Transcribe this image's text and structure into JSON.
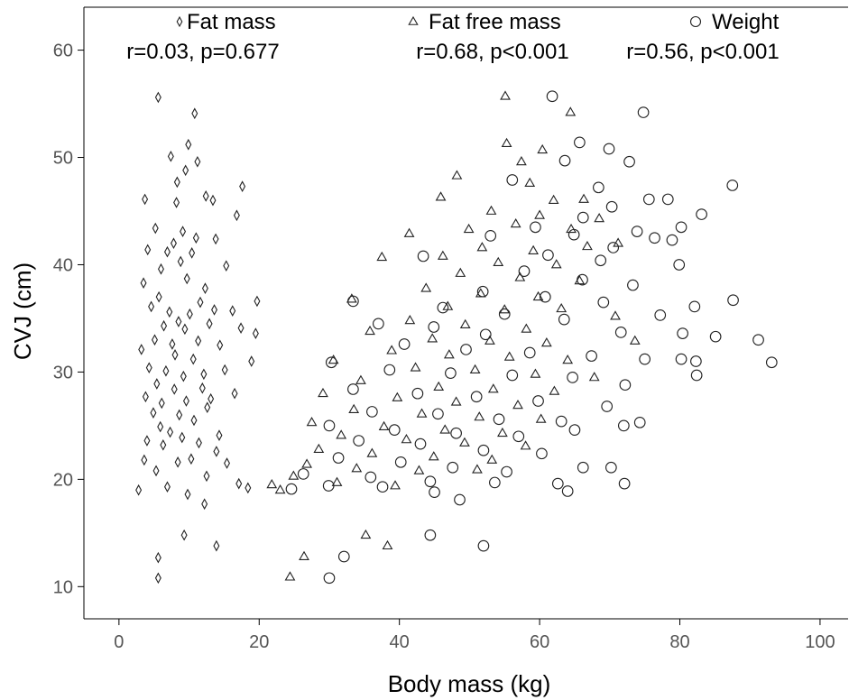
{
  "chart_data": {
    "type": "scatter",
    "xlabel": "Body mass (kg)",
    "ylabel": "CVJ (cm)",
    "xlim": [
      -5,
      104
    ],
    "ylim": [
      7,
      64
    ],
    "x_ticks": [
      0,
      20,
      40,
      60,
      80,
      100
    ],
    "y_ticks": [
      10,
      20,
      30,
      40,
      50,
      60
    ],
    "grid": false,
    "legend_position": "top",
    "series": [
      {
        "name": "Fat mass",
        "marker": "diamond",
        "annotation": "r=0.03, p=0.677",
        "points": [
          [
            5.6,
            55.6
          ],
          [
            10.8,
            54.1
          ],
          [
            9.9,
            51.2
          ],
          [
            7.4,
            50.1
          ],
          [
            11.2,
            49.6
          ],
          [
            9.5,
            48.8
          ],
          [
            17.6,
            47.3
          ],
          [
            8.3,
            47.7
          ],
          [
            12.4,
            46.4
          ],
          [
            3.7,
            46.1
          ],
          [
            8.2,
            45.8
          ],
          [
            13.4,
            46.0
          ],
          [
            16.8,
            44.6
          ],
          [
            5.2,
            43.4
          ],
          [
            9.1,
            43.1
          ],
          [
            11.0,
            42.5
          ],
          [
            13.8,
            42.4
          ],
          [
            4.1,
            41.4
          ],
          [
            6.9,
            41.2
          ],
          [
            7.8,
            42.0
          ],
          [
            10.4,
            41.1
          ],
          [
            8.8,
            40.3
          ],
          [
            15.3,
            39.9
          ],
          [
            6.0,
            39.6
          ],
          [
            9.7,
            38.7
          ],
          [
            3.5,
            38.3
          ],
          [
            12.3,
            37.8
          ],
          [
            5.7,
            37.0
          ],
          [
            11.6,
            36.5
          ],
          [
            19.7,
            36.6
          ],
          [
            4.6,
            36.1
          ],
          [
            7.2,
            35.6
          ],
          [
            10.1,
            35.4
          ],
          [
            13.6,
            35.8
          ],
          [
            16.2,
            35.7
          ],
          [
            8.5,
            34.7
          ],
          [
            6.4,
            34.3
          ],
          [
            9.4,
            34.0
          ],
          [
            12.9,
            34.5
          ],
          [
            17.4,
            34.1
          ],
          [
            19.5,
            33.6
          ],
          [
            5.1,
            33.0
          ],
          [
            7.6,
            32.6
          ],
          [
            11.3,
            32.9
          ],
          [
            14.4,
            32.5
          ],
          [
            3.2,
            32.1
          ],
          [
            8.0,
            31.6
          ],
          [
            10.6,
            31.2
          ],
          [
            18.9,
            31.0
          ],
          [
            4.3,
            30.4
          ],
          [
            6.7,
            30.1
          ],
          [
            9.2,
            29.6
          ],
          [
            12.1,
            29.8
          ],
          [
            15.1,
            30.2
          ],
          [
            5.4,
            28.9
          ],
          [
            7.9,
            28.4
          ],
          [
            11.9,
            28.5
          ],
          [
            3.8,
            27.7
          ],
          [
            6.1,
            27.1
          ],
          [
            9.6,
            27.3
          ],
          [
            13.1,
            27.5
          ],
          [
            16.5,
            28.0
          ],
          [
            4.9,
            26.2
          ],
          [
            8.6,
            26.0
          ],
          [
            10.7,
            25.5
          ],
          [
            12.6,
            26.7
          ],
          [
            5.9,
            24.9
          ],
          [
            7.3,
            24.4
          ],
          [
            9.0,
            23.9
          ],
          [
            14.3,
            24.1
          ],
          [
            4.0,
            23.6
          ],
          [
            6.3,
            23.2
          ],
          [
            11.4,
            23.4
          ],
          [
            13.9,
            22.6
          ],
          [
            3.6,
            21.8
          ],
          [
            8.4,
            21.6
          ],
          [
            10.3,
            21.9
          ],
          [
            15.4,
            21.5
          ],
          [
            5.3,
            20.8
          ],
          [
            12.5,
            20.3
          ],
          [
            17.1,
            19.6
          ],
          [
            2.8,
            19.0
          ],
          [
            6.9,
            19.3
          ],
          [
            9.8,
            18.6
          ],
          [
            12.2,
            17.7
          ],
          [
            18.4,
            19.2
          ],
          [
            5.6,
            12.7
          ],
          [
            9.3,
            14.8
          ],
          [
            13.9,
            13.8
          ],
          [
            5.6,
            10.8
          ]
        ]
      },
      {
        "name": "Fat free mass",
        "marker": "triangle",
        "annotation": "r=0.68, p<0.001",
        "points": [
          [
            55.1,
            55.7
          ],
          [
            64.4,
            54.2
          ],
          [
            55.3,
            51.3
          ],
          [
            60.4,
            50.7
          ],
          [
            57.4,
            49.6
          ],
          [
            48.2,
            48.3
          ],
          [
            58.6,
            47.6
          ],
          [
            45.9,
            46.3
          ],
          [
            62.0,
            46.0
          ],
          [
            66.3,
            46.1
          ],
          [
            53.1,
            45.0
          ],
          [
            60.0,
            44.6
          ],
          [
            68.5,
            44.3
          ],
          [
            49.9,
            43.3
          ],
          [
            56.6,
            43.8
          ],
          [
            64.5,
            43.3
          ],
          [
            71.2,
            42.0
          ],
          [
            41.4,
            42.9
          ],
          [
            51.8,
            41.6
          ],
          [
            59.1,
            41.3
          ],
          [
            66.8,
            41.7
          ],
          [
            46.2,
            40.8
          ],
          [
            54.1,
            40.2
          ],
          [
            62.4,
            40.0
          ],
          [
            37.5,
            40.7
          ],
          [
            48.7,
            39.2
          ],
          [
            57.2,
            38.8
          ],
          [
            65.7,
            38.5
          ],
          [
            43.8,
            37.8
          ],
          [
            51.6,
            37.3
          ],
          [
            59.8,
            37.0
          ],
          [
            33.2,
            36.8
          ],
          [
            46.9,
            36.1
          ],
          [
            55.0,
            35.8
          ],
          [
            63.1,
            35.9
          ],
          [
            70.8,
            35.2
          ],
          [
            41.5,
            34.8
          ],
          [
            49.4,
            34.4
          ],
          [
            58.1,
            34.0
          ],
          [
            35.8,
            33.8
          ],
          [
            44.7,
            33.1
          ],
          [
            52.9,
            32.9
          ],
          [
            61.0,
            32.7
          ],
          [
            73.6,
            32.9
          ],
          [
            38.9,
            32.0
          ],
          [
            47.1,
            31.6
          ],
          [
            55.7,
            31.4
          ],
          [
            64.0,
            31.1
          ],
          [
            30.6,
            31.1
          ],
          [
            42.3,
            30.4
          ],
          [
            50.8,
            30.2
          ],
          [
            59.4,
            29.8
          ],
          [
            67.8,
            29.5
          ],
          [
            34.5,
            29.2
          ],
          [
            45.6,
            28.6
          ],
          [
            53.4,
            28.4
          ],
          [
            62.1,
            28.2
          ],
          [
            29.1,
            28.0
          ],
          [
            39.7,
            27.6
          ],
          [
            48.1,
            27.2
          ],
          [
            56.9,
            26.9
          ],
          [
            33.5,
            26.5
          ],
          [
            43.2,
            26.1
          ],
          [
            51.4,
            25.8
          ],
          [
            60.2,
            25.6
          ],
          [
            27.5,
            25.3
          ],
          [
            37.8,
            24.9
          ],
          [
            46.5,
            24.6
          ],
          [
            54.7,
            24.3
          ],
          [
            31.7,
            24.1
          ],
          [
            41.0,
            23.7
          ],
          [
            49.3,
            23.4
          ],
          [
            58.0,
            23.1
          ],
          [
            28.5,
            22.8
          ],
          [
            36.1,
            22.4
          ],
          [
            44.9,
            22.1
          ],
          [
            53.2,
            21.8
          ],
          [
            26.8,
            21.4
          ],
          [
            33.9,
            21.0
          ],
          [
            42.8,
            20.8
          ],
          [
            51.1,
            20.9
          ],
          [
            24.9,
            20.3
          ],
          [
            31.1,
            19.7
          ],
          [
            39.4,
            19.4
          ],
          [
            23.0,
            19.0
          ],
          [
            21.8,
            19.5
          ],
          [
            26.4,
            12.8
          ],
          [
            35.2,
            14.8
          ],
          [
            38.3,
            13.8
          ],
          [
            24.4,
            10.9
          ]
        ]
      },
      {
        "name": "Weight",
        "marker": "circle",
        "annotation": "r=0.56, p<0.001",
        "points": [
          [
            61.8,
            55.7
          ],
          [
            74.8,
            54.2
          ],
          [
            65.7,
            51.4
          ],
          [
            69.9,
            50.8
          ],
          [
            72.8,
            49.6
          ],
          [
            63.6,
            49.7
          ],
          [
            87.5,
            47.4
          ],
          [
            68.4,
            47.2
          ],
          [
            56.1,
            47.9
          ],
          [
            78.3,
            46.1
          ],
          [
            70.3,
            45.4
          ],
          [
            75.6,
            46.1
          ],
          [
            83.1,
            44.7
          ],
          [
            66.2,
            44.4
          ],
          [
            59.4,
            43.5
          ],
          [
            73.9,
            43.1
          ],
          [
            80.2,
            43.5
          ],
          [
            64.9,
            42.8
          ],
          [
            76.4,
            42.5
          ],
          [
            53.0,
            42.7
          ],
          [
            70.5,
            41.6
          ],
          [
            78.9,
            42.3
          ],
          [
            61.2,
            40.9
          ],
          [
            68.7,
            40.4
          ],
          [
            79.9,
            40.0
          ],
          [
            43.4,
            40.8
          ],
          [
            57.8,
            39.4
          ],
          [
            66.1,
            38.6
          ],
          [
            73.3,
            38.1
          ],
          [
            82.1,
            36.1
          ],
          [
            51.9,
            37.5
          ],
          [
            60.8,
            37.0
          ],
          [
            69.1,
            36.5
          ],
          [
            87.6,
            36.7
          ],
          [
            33.4,
            36.6
          ],
          [
            46.2,
            36.0
          ],
          [
            55.0,
            35.4
          ],
          [
            63.5,
            34.9
          ],
          [
            77.2,
            35.3
          ],
          [
            80.4,
            33.6
          ],
          [
            37.0,
            34.5
          ],
          [
            44.9,
            34.2
          ],
          [
            52.3,
            33.5
          ],
          [
            71.6,
            33.7
          ],
          [
            85.1,
            33.3
          ],
          [
            91.2,
            33.0
          ],
          [
            40.7,
            32.6
          ],
          [
            49.5,
            32.1
          ],
          [
            58.6,
            31.8
          ],
          [
            67.4,
            31.5
          ],
          [
            75.0,
            31.2
          ],
          [
            80.2,
            31.2
          ],
          [
            82.3,
            31.0
          ],
          [
            93.1,
            30.9
          ],
          [
            30.3,
            30.9
          ],
          [
            38.6,
            30.2
          ],
          [
            47.3,
            29.9
          ],
          [
            56.1,
            29.7
          ],
          [
            64.7,
            29.5
          ],
          [
            72.2,
            28.8
          ],
          [
            82.4,
            29.7
          ],
          [
            33.4,
            28.4
          ],
          [
            42.6,
            28.0
          ],
          [
            51.0,
            27.7
          ],
          [
            59.8,
            27.3
          ],
          [
            69.6,
            26.8
          ],
          [
            36.1,
            26.3
          ],
          [
            45.5,
            26.1
          ],
          [
            54.2,
            25.6
          ],
          [
            63.1,
            25.4
          ],
          [
            72.0,
            25.0
          ],
          [
            74.3,
            25.3
          ],
          [
            30.0,
            25.0
          ],
          [
            39.3,
            24.6
          ],
          [
            48.1,
            24.3
          ],
          [
            57.0,
            24.0
          ],
          [
            65.0,
            24.6
          ],
          [
            34.2,
            23.6
          ],
          [
            43.0,
            23.3
          ],
          [
            52.0,
            22.7
          ],
          [
            60.3,
            22.4
          ],
          [
            31.3,
            22.0
          ],
          [
            40.2,
            21.6
          ],
          [
            47.6,
            21.1
          ],
          [
            55.3,
            20.7
          ],
          [
            66.2,
            21.1
          ],
          [
            70.2,
            21.1
          ],
          [
            26.3,
            20.5
          ],
          [
            35.9,
            20.2
          ],
          [
            44.4,
            19.8
          ],
          [
            53.6,
            19.7
          ],
          [
            62.6,
            19.6
          ],
          [
            72.1,
            19.6
          ],
          [
            24.6,
            19.1
          ],
          [
            29.9,
            19.4
          ],
          [
            37.6,
            19.3
          ],
          [
            45.0,
            18.8
          ],
          [
            48.6,
            18.1
          ],
          [
            64.0,
            18.9
          ],
          [
            32.1,
            12.8
          ],
          [
            44.4,
            14.8
          ],
          [
            52.0,
            13.8
          ],
          [
            30.0,
            10.8
          ]
        ]
      }
    ]
  }
}
